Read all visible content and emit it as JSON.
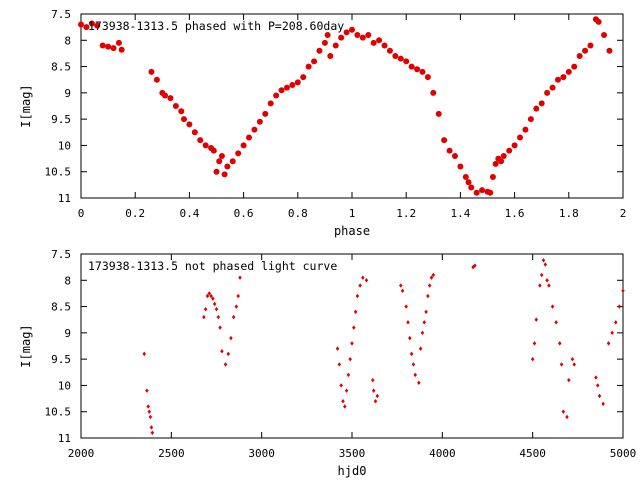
{
  "colors": {
    "points": "#e00000",
    "axes": "#000000",
    "background": "#ffffff"
  },
  "chart_data": [
    {
      "type": "scatter",
      "title": "173938-1313.5 phased with P=208.60day",
      "xlabel": "phase",
      "ylabel": "I[mag]",
      "xlim": [
        0,
        2
      ],
      "ylim": [
        7.5,
        11
      ],
      "y_inverted": true,
      "grid": false,
      "legend": "none",
      "marker": "filled-circle",
      "x_ticks": [
        "0",
        "0.2",
        "0.4",
        "0.6",
        "0.8",
        "1",
        "1.2",
        "1.4",
        "1.6",
        "1.8",
        "2"
      ],
      "y_ticks": [
        "7.5",
        "8",
        "8.5",
        "9",
        "9.5",
        "10",
        "10.5",
        "11"
      ],
      "x": [
        0.0,
        0.02,
        0.04,
        0.06,
        0.08,
        0.1,
        0.12,
        0.14,
        0.15,
        0.26,
        0.28,
        0.3,
        0.31,
        0.33,
        0.35,
        0.37,
        0.38,
        0.4,
        0.42,
        0.44,
        0.46,
        0.48,
        0.49,
        0.5,
        0.51,
        0.52,
        0.53,
        0.54,
        0.56,
        0.58,
        0.6,
        0.62,
        0.64,
        0.66,
        0.68,
        0.7,
        0.72,
        0.74,
        0.76,
        0.78,
        0.8,
        0.82,
        0.84,
        0.86,
        0.88,
        0.9,
        0.91,
        0.92,
        0.94,
        0.96,
        0.98,
        1.0,
        1.02,
        1.04,
        1.06,
        1.08,
        1.1,
        1.12,
        1.14,
        1.16,
        1.18,
        1.2,
        1.22,
        1.24,
        1.26,
        1.28,
        1.3,
        1.32,
        1.34,
        1.36,
        1.38,
        1.4,
        1.42,
        1.43,
        1.44,
        1.46,
        1.48,
        1.5,
        1.51,
        1.52,
        1.53,
        1.54,
        1.55,
        1.56,
        1.58,
        1.6,
        1.62,
        1.64,
        1.66,
        1.68,
        1.7,
        1.72,
        1.74,
        1.76,
        1.78,
        1.8,
        1.82,
        1.84,
        1.86,
        1.88,
        1.9,
        1.91,
        1.93,
        1.95
      ],
      "y": [
        7.7,
        7.75,
        7.68,
        7.72,
        8.1,
        8.12,
        8.15,
        8.05,
        8.18,
        8.6,
        8.75,
        9.0,
        9.05,
        9.1,
        9.25,
        9.35,
        9.5,
        9.6,
        9.75,
        9.9,
        10.0,
        10.05,
        10.1,
        10.5,
        10.3,
        10.2,
        10.55,
        10.4,
        10.3,
        10.15,
        10.0,
        9.85,
        9.7,
        9.55,
        9.4,
        9.2,
        9.05,
        8.95,
        8.9,
        8.85,
        8.8,
        8.7,
        8.5,
        8.4,
        8.2,
        8.05,
        7.9,
        8.3,
        8.1,
        7.95,
        7.85,
        7.8,
        7.9,
        7.95,
        7.9,
        8.05,
        8.0,
        8.1,
        8.2,
        8.3,
        8.35,
        8.4,
        8.5,
        8.55,
        8.6,
        8.7,
        9.0,
        9.4,
        9.9,
        10.1,
        10.2,
        10.4,
        10.6,
        10.7,
        10.8,
        10.9,
        10.85,
        10.88,
        10.9,
        10.6,
        10.35,
        10.25,
        10.3,
        10.2,
        10.1,
        10.0,
        9.85,
        9.7,
        9.5,
        9.3,
        9.2,
        9.0,
        8.9,
        8.75,
        8.7,
        8.6,
        8.5,
        8.3,
        8.2,
        8.1,
        7.6,
        7.65,
        7.9,
        8.2
      ]
    },
    {
      "type": "scatter",
      "title": "173938-1313.5 not phased light curve",
      "xlabel": "hjd0",
      "ylabel": "I[mag]",
      "xlim": [
        2000,
        5000
      ],
      "ylim": [
        7.5,
        11
      ],
      "y_inverted": true,
      "grid": false,
      "legend": "none",
      "marker": "small-diamond",
      "x_ticks": [
        "2000",
        "2500",
        "3000",
        "3500",
        "4000",
        "4500",
        "5000"
      ],
      "y_ticks": [
        "7.5",
        "8",
        "8.5",
        "9",
        "9.5",
        "10",
        "10.5",
        "11"
      ],
      "x": [
        2350,
        2365,
        2372,
        2378,
        2384,
        2390,
        2395,
        2680,
        2690,
        2700,
        2710,
        2720,
        2730,
        2740,
        2750,
        2760,
        2770,
        2780,
        2800,
        2815,
        2830,
        2845,
        2860,
        2870,
        2880,
        3420,
        3430,
        3440,
        3450,
        3460,
        3470,
        3480,
        3490,
        3500,
        3510,
        3520,
        3530,
        3545,
        3560,
        3580,
        3615,
        3620,
        3630,
        3640,
        3770,
        3780,
        3800,
        3810,
        3820,
        3830,
        3840,
        3850,
        3870,
        3880,
        3890,
        3900,
        3910,
        3920,
        3930,
        3940,
        3950,
        4170,
        4180,
        4500,
        4510,
        4520,
        4540,
        4550,
        4560,
        4570,
        4580,
        4590,
        4610,
        4630,
        4650,
        4660,
        4670,
        4690,
        4700,
        4720,
        4730,
        4850,
        4860,
        4870,
        4890,
        4920,
        4940,
        4960,
        4980,
        5000
      ],
      "y": [
        9.4,
        10.1,
        10.4,
        10.5,
        10.6,
        10.8,
        10.9,
        8.7,
        8.55,
        8.3,
        8.25,
        8.3,
        8.35,
        8.45,
        8.55,
        8.7,
        8.9,
        9.35,
        9.6,
        9.4,
        9.1,
        8.7,
        8.5,
        8.3,
        7.95,
        9.3,
        9.6,
        10.0,
        10.3,
        10.4,
        10.1,
        9.8,
        9.5,
        9.2,
        8.9,
        8.6,
        8.3,
        8.1,
        7.95,
        8.0,
        9.9,
        10.1,
        10.3,
        10.2,
        8.1,
        8.2,
        8.5,
        8.8,
        9.1,
        9.4,
        9.6,
        9.8,
        9.95,
        9.3,
        9.0,
        8.8,
        8.6,
        8.3,
        8.1,
        7.95,
        7.9,
        7.75,
        7.72,
        9.5,
        9.2,
        8.75,
        8.1,
        7.9,
        7.62,
        7.7,
        8.0,
        8.1,
        8.5,
        8.8,
        9.2,
        9.6,
        10.5,
        10.6,
        9.9,
        9.5,
        9.6,
        9.85,
        10.0,
        10.2,
        10.35,
        9.2,
        9.0,
        8.8,
        8.5,
        8.2
      ]
    }
  ]
}
